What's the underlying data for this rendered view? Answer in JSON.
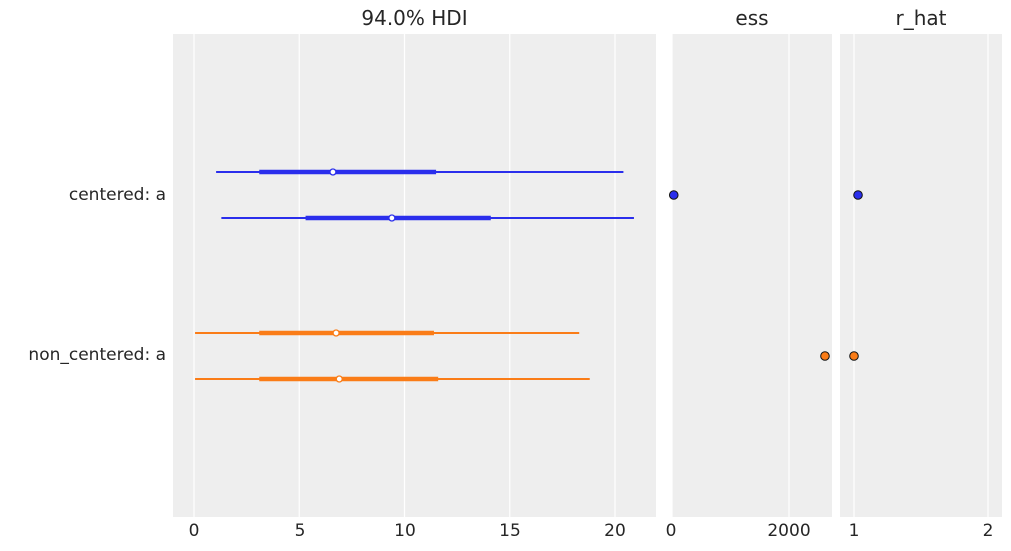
{
  "chart_data": {
    "type": "forest",
    "panels": [
      {
        "title": "94.0% HDI",
        "xticks": [
          0,
          5,
          10,
          15,
          20
        ],
        "xlim": [
          -1,
          22
        ]
      },
      {
        "title": "ess",
        "xticks": [
          0,
          2000
        ],
        "xlim": [
          -20,
          2750
        ]
      },
      {
        "title": "r_hat",
        "xticks": [
          1,
          2
        ],
        "xlim": [
          0.89,
          2.1
        ]
      }
    ],
    "yticklabels": [
      "centered: a",
      "non_centered: a"
    ],
    "series": [
      {
        "name": "centered: a",
        "color": "#2a2eec",
        "chains": [
          {
            "hdi_low": 1.05,
            "iqr_low": 3.1,
            "median": 6.6,
            "iqr_high": 11.5,
            "hdi_high": 20.4
          },
          {
            "hdi_low": 1.3,
            "iqr_low": 5.3,
            "median": 9.4,
            "iqr_high": 14.1,
            "hdi_high": 20.9
          }
        ],
        "ess": 30,
        "r_hat": 1.03
      },
      {
        "name": "non_centered: a",
        "color": "#fa7c17",
        "chains": [
          {
            "hdi_low": 0.05,
            "iqr_low": 3.1,
            "median": 6.75,
            "iqr_high": 11.4,
            "hdi_high": 18.3
          },
          {
            "hdi_low": 0.05,
            "iqr_low": 3.1,
            "median": 6.9,
            "iqr_high": 11.6,
            "hdi_high": 18.8
          }
        ],
        "ess": 2615,
        "r_hat": 1.0
      }
    ],
    "grid": true,
    "background": "#eeeeee"
  },
  "labels": {
    "title_hdi": "94.0% HDI",
    "title_ess": "ess",
    "title_rhat": "r_hat",
    "ylabel_0": "centered: a",
    "ylabel_1": "non_centered: a",
    "tick_hdi_0": "0",
    "tick_hdi_1": "5",
    "tick_hdi_2": "10",
    "tick_hdi_3": "15",
    "tick_hdi_4": "20",
    "tick_ess_0": "0",
    "tick_ess_1": "2000",
    "tick_rhat_0": "1",
    "tick_rhat_1": "2"
  }
}
